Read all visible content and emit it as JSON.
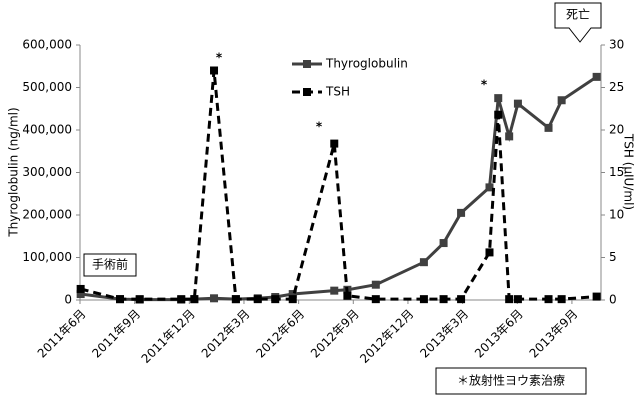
{
  "chart_data": {
    "type": "line",
    "y_label": "Thyroglobulin (ng/ml)",
    "y2_label": "TSH (μIU/ml)",
    "x": [
      2011.42,
      2011.6,
      2011.69,
      2011.88,
      2011.94,
      2012.03,
      2012.13,
      2012.23,
      2012.31,
      2012.39,
      2012.58,
      2012.64,
      2012.77,
      2012.99,
      2013.08,
      2013.16,
      2013.29,
      2013.33,
      2013.38,
      2013.42,
      2013.56,
      2013.62,
      2013.78
    ],
    "xlim": [
      2011.417,
      2013.8
    ],
    "xticks": [
      {
        "value": 2011.417,
        "label": "2011年6月"
      },
      {
        "value": 2011.667,
        "label": "2011年9月"
      },
      {
        "value": 2011.917,
        "label": "2011年12月"
      },
      {
        "value": 2012.167,
        "label": "2012年3月"
      },
      {
        "value": 2012.417,
        "label": "2012年6月"
      },
      {
        "value": 2012.667,
        "label": "2012年9月"
      },
      {
        "value": 2012.917,
        "label": "2012年12月"
      },
      {
        "value": 2013.167,
        "label": "2013年3月"
      },
      {
        "value": 2013.417,
        "label": "2013年6月"
      },
      {
        "value": 2013.667,
        "label": "2013年9月"
      }
    ],
    "ylim": [
      0,
      600000
    ],
    "yticks": [
      0,
      {
        "value": 100000,
        "label": "100,000"
      },
      {
        "value": 200000,
        "label": "200,000"
      },
      {
        "value": 300000,
        "label": "300,000"
      },
      {
        "value": 400000,
        "label": "400,000"
      },
      {
        "value": 500000,
        "label": "500,000"
      },
      {
        "value": 600000,
        "label": "600,000"
      }
    ],
    "y2lim": [
      0,
      30
    ],
    "y2ticks": [
      0,
      5,
      10,
      15,
      20,
      25,
      30
    ],
    "series": [
      {
        "name": "Thyroglobulin",
        "color": "#404040",
        "dash": false,
        "values": [
          14000,
          2000,
          1000,
          1000,
          2000,
          4000,
          2000,
          4000,
          7000,
          14000,
          22000,
          24000,
          36000,
          89000,
          134000,
          205000,
          265000,
          475000,
          385000,
          462000,
          405000,
          470000,
          525000
        ]
      },
      {
        "name": "TSH",
        "color": "#000000",
        "dash": true,
        "axis": "y2",
        "values": [
          1.3,
          0.1,
          0.1,
          0.1,
          0.1,
          27,
          0.1,
          0.1,
          0.1,
          0.1,
          18.4,
          0.5,
          0.1,
          0.1,
          0.1,
          0.1,
          5.6,
          21.8,
          0.1,
          0.1,
          0.1,
          0.1,
          0.4
        ]
      }
    ],
    "legend": "top-center",
    "annotations": [
      "*",
      "*",
      "*",
      "手術前",
      "＊放射性ヨウ素治療",
      "死亡"
    ]
  }
}
